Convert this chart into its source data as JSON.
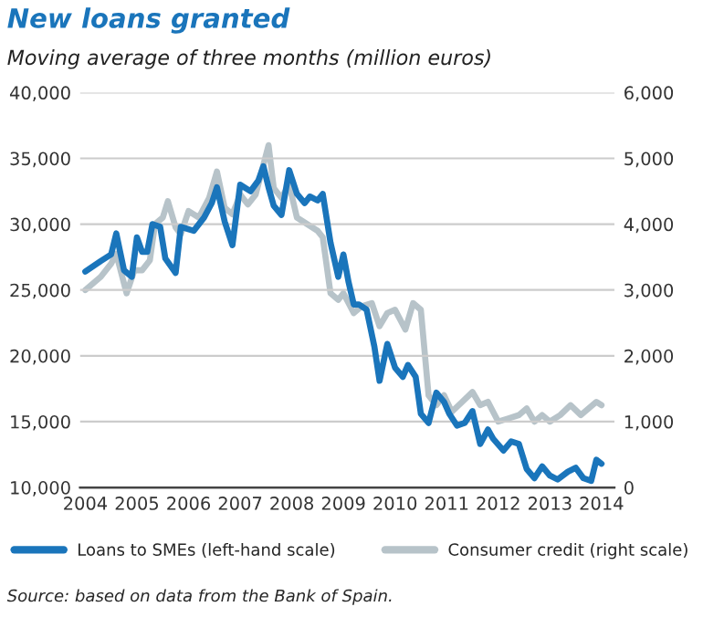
{
  "chart_data": {
    "type": "line",
    "title": "New loans granted",
    "subtitle": "Moving average of three months (million euros)",
    "annotations": [
      "Source: based on data from the Bank of Spain."
    ],
    "xlim": [
      2003.9,
      2014.25
    ],
    "xticks": [
      2004,
      2005,
      2006,
      2007,
      2008,
      2009,
      2010,
      2011,
      2012,
      2013,
      2014
    ],
    "ylim": [
      10000,
      40000
    ],
    "yticks": [
      {
        "value": 10000,
        "label": "10,000"
      },
      {
        "value": 15000,
        "label": "15,000"
      },
      {
        "value": 20000,
        "label": "20,000"
      },
      {
        "value": 25000,
        "label": "25,000"
      },
      {
        "value": 30000,
        "label": "30,000"
      },
      {
        "value": 35000,
        "label": "35,000"
      },
      {
        "value": 40000,
        "label": "40,000"
      }
    ],
    "y2lim": [
      0,
      6000
    ],
    "y2ticks": [
      0,
      {
        "value": 1000,
        "label": "1,000"
      },
      {
        "value": 2000,
        "label": "2,000"
      },
      {
        "value": 3000,
        "label": "3,000"
      },
      {
        "value": 4000,
        "label": "4,000"
      },
      {
        "value": 5000,
        "label": "5,000"
      },
      {
        "value": 6000,
        "label": "6,000"
      }
    ],
    "grid": "y",
    "legend": "bottom",
    "series": [
      {
        "name": "Consumer credit (right scale)",
        "color": "#b7c3c9",
        "axis": "y2",
        "x": [
          2004.0,
          2004.3,
          2004.5,
          2004.6,
          2004.8,
          2004.95,
          2005.1,
          2005.25,
          2005.35,
          2005.5,
          2005.6,
          2005.75,
          2005.85,
          2006.0,
          2006.2,
          2006.4,
          2006.55,
          2006.7,
          2006.85,
          2007.0,
          2007.15,
          2007.3,
          2007.45,
          2007.55,
          2007.65,
          2007.8,
          2007.95,
          2008.1,
          2008.3,
          2008.5,
          2008.6,
          2008.75,
          2008.9,
          2009.0,
          2009.2,
          2009.35,
          2009.55,
          2009.7,
          2009.85,
          2010.0,
          2010.2,
          2010.35,
          2010.5,
          2010.65,
          2010.8,
          2010.95,
          2011.1,
          2011.3,
          2011.5,
          2011.65,
          2011.8,
          2012.0,
          2012.2,
          2012.4,
          2012.55,
          2012.7,
          2012.85,
          2013.0,
          2013.2,
          2013.4,
          2013.6,
          2013.75,
          2013.9,
          2014.0
        ],
        "values": [
          3000,
          3200,
          3400,
          3550,
          2950,
          3300,
          3300,
          3450,
          4000,
          4100,
          4350,
          3950,
          3850,
          4200,
          4100,
          4400,
          4800,
          4250,
          4150,
          4450,
          4300,
          4450,
          4900,
          5200,
          4550,
          4400,
          4600,
          4100,
          4000,
          3900,
          3800,
          2950,
          2850,
          2950,
          2650,
          2750,
          2800,
          2450,
          2650,
          2700,
          2400,
          2800,
          2700,
          1400,
          1250,
          1400,
          1150,
          1300,
          1450,
          1250,
          1300,
          1000,
          1050,
          1100,
          1200,
          1000,
          1100,
          1000,
          1100,
          1250,
          1100,
          1200,
          1300,
          1250
        ]
      },
      {
        "name": "Loans to SMEs (left-hand scale)",
        "color": "#1a75bb",
        "x": [
          2004.0,
          2004.3,
          2004.5,
          2004.6,
          2004.75,
          2004.9,
          2005.0,
          2005.1,
          2005.2,
          2005.3,
          2005.45,
          2005.55,
          2005.75,
          2005.85,
          2006.1,
          2006.3,
          2006.45,
          2006.55,
          2006.7,
          2006.85,
          2007.0,
          2007.2,
          2007.35,
          2007.45,
          2007.55,
          2007.65,
          2007.8,
          2007.95,
          2008.1,
          2008.25,
          2008.35,
          2008.5,
          2008.6,
          2008.75,
          2008.9,
          2009.0,
          2009.1,
          2009.2,
          2009.3,
          2009.45,
          2009.6,
          2009.7,
          2009.85,
          2010.0,
          2010.15,
          2010.25,
          2010.4,
          2010.5,
          2010.65,
          2010.8,
          2010.95,
          2011.05,
          2011.2,
          2011.35,
          2011.5,
          2011.65,
          2011.8,
          2011.9,
          2012.1,
          2012.25,
          2012.4,
          2012.55,
          2012.7,
          2012.85,
          2013.0,
          2013.15,
          2013.35,
          2013.5,
          2013.65,
          2013.8,
          2013.9,
          2014.0
        ],
        "values": [
          26400,
          27200,
          27700,
          29300,
          26500,
          26000,
          29000,
          27900,
          27900,
          30000,
          29800,
          27400,
          26300,
          29800,
          29500,
          30500,
          31600,
          32800,
          30200,
          28400,
          33000,
          32500,
          33300,
          34400,
          32800,
          31400,
          30700,
          34100,
          32300,
          31600,
          32100,
          31800,
          32300,
          28600,
          26000,
          27700,
          25600,
          23900,
          23900,
          23500,
          20700,
          18100,
          20900,
          19100,
          18400,
          19300,
          18400,
          15600,
          14900,
          17200,
          16500,
          15600,
          14700,
          14900,
          15800,
          13300,
          14400,
          13700,
          12800,
          13500,
          13300,
          11400,
          10700,
          11600,
          10900,
          10600,
          11200,
          11500,
          10700,
          10500,
          12100,
          11800
        ]
      }
    ]
  }
}
